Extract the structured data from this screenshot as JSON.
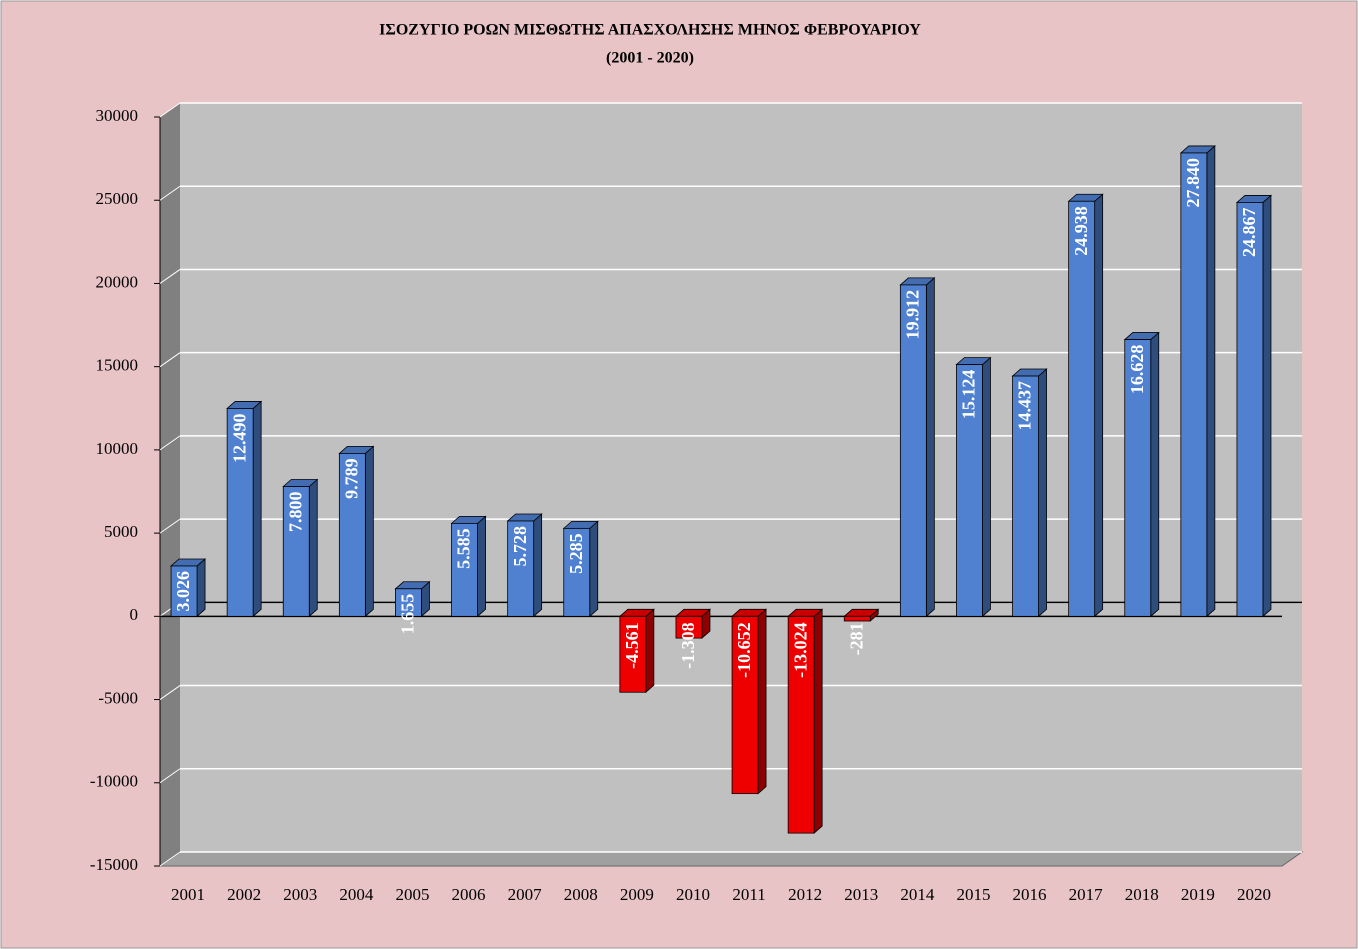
{
  "chart_data": {
    "type": "bar",
    "title": "ΙΣΟΖΥΓΙΟ ΡΟΩΝ ΜΙΣΘΩΤΗΣ ΑΠΑΣΧΟΛΗΣΗΣ ΜΗΝΟΣ  ΦΕΒΡΟΥΑΡΙΟΥ",
    "subtitle": "(2001 - 2020)",
    "categories": [
      "2001",
      "2002",
      "2003",
      "2004",
      "2005",
      "2006",
      "2007",
      "2008",
      "2009",
      "2010",
      "2011",
      "2012",
      "2013",
      "2014",
      "2015",
      "2016",
      "2017",
      "2018",
      "2019",
      "2020"
    ],
    "values": [
      3026,
      12490,
      7800,
      9789,
      1655,
      5585,
      5728,
      5285,
      -4561,
      -1308,
      -10652,
      -13024,
      -281,
      19912,
      15124,
      14437,
      24938,
      16628,
      27840,
      24867
    ],
    "value_labels": [
      "3.026",
      "12.490",
      "7.800",
      "9.789",
      "1.655",
      "5.585",
      "5.728",
      "5.285",
      "-4.561",
      "-1.308",
      "-10.652",
      "-13.024",
      "-281",
      "19.912",
      "15.124",
      "14.437",
      "24.938",
      "16.628",
      "27.840",
      "24.867"
    ],
    "color": "#4f81d0",
    "negative_color": "#ee0000",
    "ylim": [
      -15000,
      30000
    ],
    "yticks": [
      -15000,
      -10000,
      -5000,
      0,
      5000,
      10000,
      15000,
      20000,
      25000,
      30000
    ],
    "grid": true
  }
}
